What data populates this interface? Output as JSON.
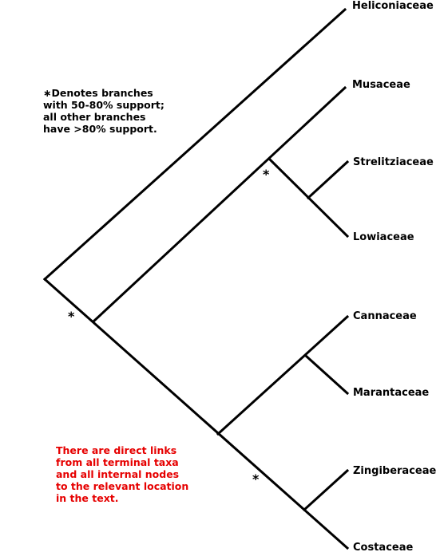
{
  "colors": {
    "lines": "#000000",
    "note_text": "#000000",
    "link_note": "#e60000"
  },
  "taxa": {
    "heliconiaceae": "Heliconiaceae",
    "musaceae": "Musaceae",
    "strelitziaceae": "Strelitziaceae",
    "lowiaceae": "Lowiaceae",
    "cannaceae": "Cannaceae",
    "marantaceae": "Marantaceae",
    "zingiberaceae": "Zingiberaceae",
    "costaceae": "Costaceae"
  },
  "support_note": {
    "marker": "∗",
    "lines": [
      "Denotes branches",
      "with 50-80% support;",
      "all other branches",
      "have >80% support."
    ]
  },
  "links_note": {
    "lines": [
      "There are direct links",
      "from all terminal taxa",
      "and all internal nodes",
      "to the relevant location",
      "in the text."
    ]
  },
  "support_markers": {
    "musaceae_strelitziaceae_lowiaceae": "*",
    "ingroup_without_heliconiaceae": "*",
    "zingiberaceae_costaceae": "*"
  }
}
